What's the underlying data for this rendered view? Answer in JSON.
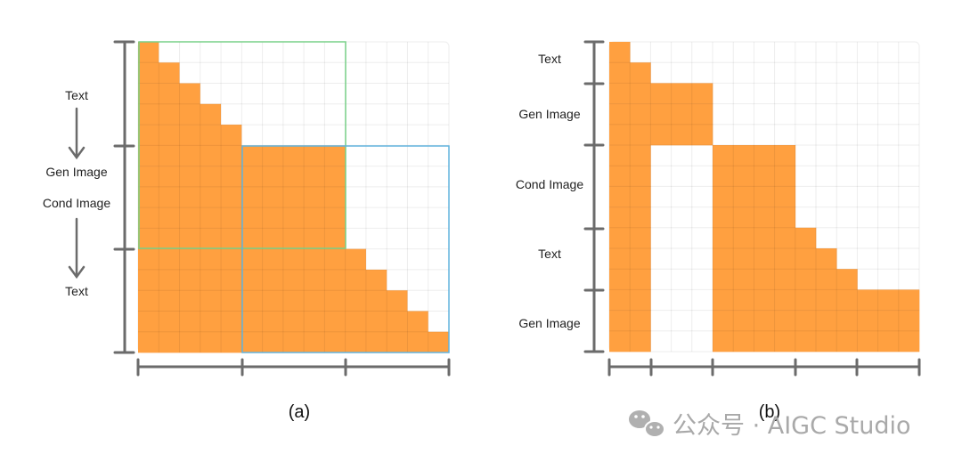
{
  "panel_a": {
    "caption": "(a)",
    "labels": [
      "Text",
      "Gen Image",
      "Cond Image",
      "Text"
    ],
    "grid_cells": 15,
    "fill_color": "#FFA040",
    "grid_color": "#e6e6e6",
    "window_1_color": "#78D088",
    "window_2_color": "#62B4DE"
  },
  "panel_b": {
    "caption": "(b)",
    "labels": [
      "Text",
      "Gen Image",
      "Cond Image",
      "Text",
      "Gen Image"
    ],
    "grid_cells": 15,
    "fill_color": "#FFA040"
  },
  "watermark": {
    "icon": "wechat-icon",
    "text": "公众号 · AIGC Studio"
  }
}
